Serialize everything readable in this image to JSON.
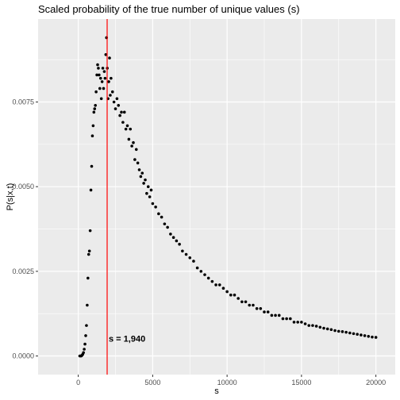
{
  "chart_data": {
    "type": "scatter",
    "title": "Scaled probability of the true number of unique values (s)",
    "xlabel": "s",
    "ylabel": "P(s|x,t)",
    "xlim": [
      -2700,
      21300
    ],
    "ylim": [
      -0.00055,
      0.00995
    ],
    "x_ticks": [
      0,
      5000,
      10000,
      15000,
      20000
    ],
    "x_tick_labels": [
      "0",
      "5000",
      "10000",
      "15000",
      "20000"
    ],
    "y_ticks": [
      0.0,
      0.0025,
      0.005,
      0.0075
    ],
    "y_tick_labels": [
      "0.0000",
      "0.0025",
      "0.0050",
      "0.0075"
    ],
    "grid": true,
    "background": "#ebebeb",
    "point_color": "#000000",
    "vline": {
      "x": 1940,
      "color": "#ff0000"
    },
    "annotation": {
      "text": "s = 1,940",
      "x": 1940,
      "y": 0.00049
    },
    "series": [
      {
        "values_description": "points",
        "x": [
          100,
          150,
          200,
          250,
          300,
          350,
          400,
          450,
          500,
          550,
          600,
          650,
          700,
          750,
          800,
          850,
          900,
          950,
          1000,
          1050,
          1100,
          1150,
          1200,
          1250,
          1300,
          1350,
          1400,
          1450,
          1500,
          1550,
          1600,
          1650,
          1700,
          1750,
          1800,
          1850,
          1900,
          1950,
          2000,
          2050,
          2100,
          2150,
          2200,
          2300,
          2400,
          2500,
          2600,
          2700,
          2800,
          2900,
          3000,
          3100,
          3200,
          3300,
          3400,
          3500,
          3600,
          3700,
          3800,
          3900,
          4000,
          4100,
          4200,
          4300,
          4400,
          4500,
          4600,
          4700,
          4800,
          4900,
          5000,
          5200,
          5400,
          5600,
          5800,
          6000,
          6200,
          6400,
          6600,
          6800,
          7000,
          7250,
          7500,
          7750,
          8000,
          8250,
          8500,
          8750,
          9000,
          9250,
          9500,
          9750,
          10000,
          10250,
          10500,
          10750,
          11000,
          11250,
          11500,
          11750,
          12000,
          12250,
          12500,
          12750,
          13000,
          13250,
          13500,
          13750,
          14000,
          14250,
          14500,
          14750,
          15000,
          15250,
          15500,
          15750,
          16000,
          16250,
          16500,
          16750,
          17000,
          17250,
          17500,
          17750,
          18000,
          18250,
          18500,
          18750,
          19000,
          19250,
          19500,
          19750,
          20000
        ],
        "y": [
          0.0,
          0.0,
          0.0,
          2e-05,
          5e-05,
          0.0001,
          0.0002,
          0.00035,
          0.0006,
          0.0009,
          0.0015,
          0.0023,
          0.003,
          0.0031,
          0.0037,
          0.0049,
          0.0056,
          0.0065,
          0.0068,
          0.0072,
          0.0073,
          0.0074,
          0.0078,
          0.0083,
          0.0086,
          0.0085,
          0.0083,
          0.0079,
          0.0082,
          0.0076,
          0.0081,
          0.0085,
          0.0079,
          0.0084,
          0.0082,
          0.0089,
          0.0094,
          0.0085,
          0.0076,
          0.0081,
          0.0088,
          0.0077,
          0.0082,
          0.0078,
          0.0075,
          0.0073,
          0.0076,
          0.0074,
          0.0071,
          0.0072,
          0.0069,
          0.0072,
          0.0067,
          0.0068,
          0.0064,
          0.0067,
          0.0062,
          0.0063,
          0.0058,
          0.0061,
          0.0057,
          0.0055,
          0.0053,
          0.0054,
          0.0051,
          0.0052,
          0.0048,
          0.005,
          0.0047,
          0.0049,
          0.0045,
          0.0044,
          0.0042,
          0.0041,
          0.0039,
          0.0038,
          0.0036,
          0.0035,
          0.0034,
          0.0033,
          0.0031,
          0.003,
          0.0029,
          0.0028,
          0.0026,
          0.0025,
          0.0024,
          0.0023,
          0.0022,
          0.0021,
          0.0021,
          0.002,
          0.0019,
          0.0018,
          0.0018,
          0.0017,
          0.0016,
          0.0016,
          0.0015,
          0.0015,
          0.0014,
          0.0014,
          0.0013,
          0.0013,
          0.0012,
          0.0012,
          0.0012,
          0.0011,
          0.0011,
          0.0011,
          0.001,
          0.001,
          0.001,
          0.00095,
          0.0009,
          0.0009,
          0.00088,
          0.00085,
          0.00082,
          0.0008,
          0.00078,
          0.00075,
          0.00073,
          0.00072,
          0.0007,
          0.00068,
          0.00066,
          0.00064,
          0.00062,
          0.0006,
          0.00058,
          0.00056,
          0.00055
        ]
      }
    ]
  }
}
